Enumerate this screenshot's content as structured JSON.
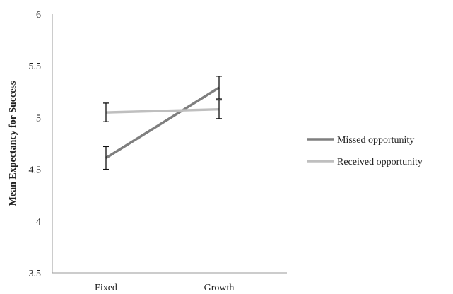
{
  "chart_data": {
    "type": "line",
    "categories": [
      "Fixed",
      "Growth"
    ],
    "ylabel": "Mean Expectancy for Success",
    "xlabel": "",
    "ylim": [
      3.5,
      6
    ],
    "yticks": [
      "3.5",
      "4",
      "4.5",
      "5",
      "5.5",
      "6"
    ],
    "grid": false,
    "legend_position": "right",
    "series": [
      {
        "name": "Missed opportunity",
        "values": [
          4.61,
          5.29
        ],
        "error": [
          0.11,
          0.11
        ],
        "color": "#7f7f7f"
      },
      {
        "name": "Received opportunity",
        "values": [
          5.05,
          5.08
        ],
        "error": [
          0.09,
          0.09
        ],
        "color": "#bfbfbf"
      }
    ]
  }
}
